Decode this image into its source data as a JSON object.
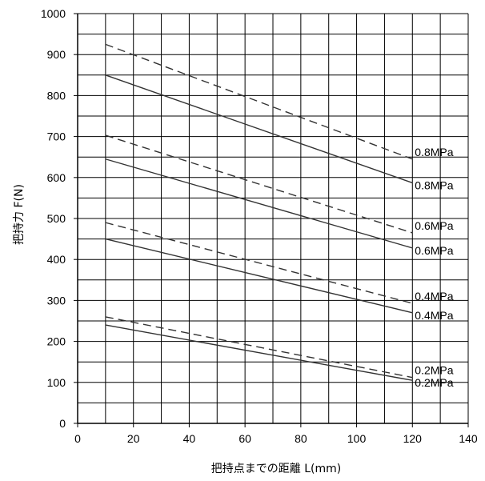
{
  "chart_data": {
    "type": "line",
    "xlabel": "把持点までの距離 L(mm)",
    "ylabel": "把持力 F(N)",
    "xlim": [
      0,
      140
    ],
    "ylim": [
      0,
      1000
    ],
    "x_ticks": [
      0,
      20,
      40,
      60,
      80,
      100,
      120,
      140
    ],
    "y_ticks": [
      0,
      100,
      200,
      300,
      400,
      500,
      600,
      700,
      800,
      900,
      1000
    ],
    "grid": true,
    "x_grid_step": 10,
    "y_grid_step": 50,
    "series": [
      {
        "label": "0.8MPa",
        "style": "dashed",
        "points": [
          [
            10,
            925
          ],
          [
            120,
            645
          ]
        ]
      },
      {
        "label": "0.8MPa",
        "style": "solid",
        "points": [
          [
            10,
            850
          ],
          [
            120,
            587
          ]
        ]
      },
      {
        "label": "0.6MPa",
        "style": "dashed",
        "points": [
          [
            10,
            703
          ],
          [
            120,
            465
          ]
        ]
      },
      {
        "label": "0.6MPa",
        "style": "solid",
        "points": [
          [
            10,
            645
          ],
          [
            120,
            428
          ]
        ]
      },
      {
        "label": "0.4MPa",
        "style": "dashed",
        "points": [
          [
            10,
            490
          ],
          [
            120,
            293
          ]
        ]
      },
      {
        "label": "0.4MPa",
        "style": "solid",
        "points": [
          [
            10,
            450
          ],
          [
            120,
            270
          ]
        ]
      },
      {
        "label": "0.2MPa",
        "style": "dashed",
        "points": [
          [
            10,
            260
          ],
          [
            120,
            112
          ]
        ]
      },
      {
        "label": "0.2MPa",
        "style": "solid",
        "points": [
          [
            10,
            240
          ],
          [
            120,
            105
          ]
        ]
      }
    ]
  }
}
